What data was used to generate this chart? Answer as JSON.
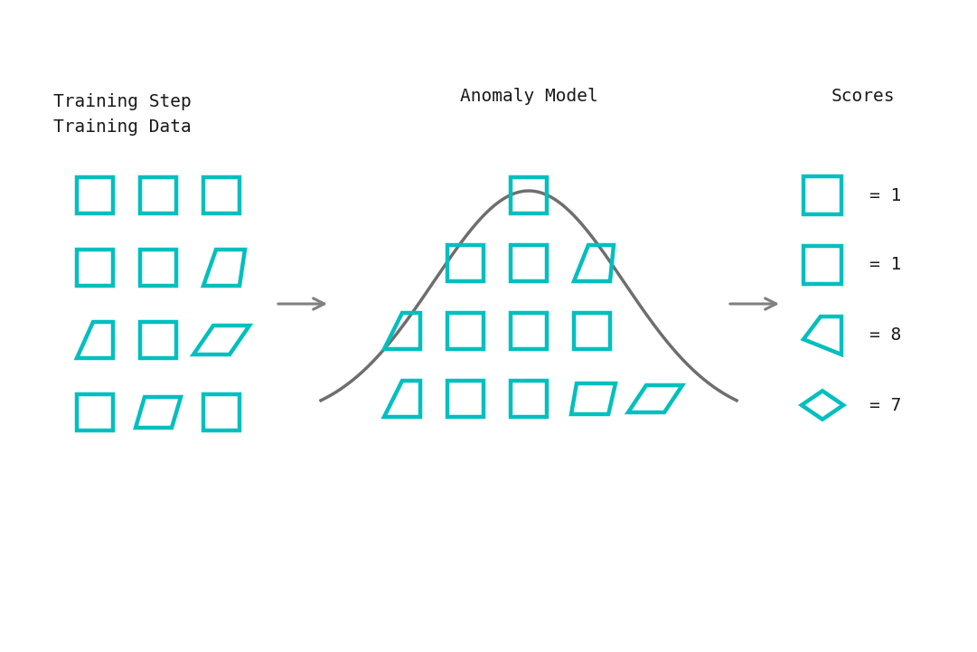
{
  "bg_color": "#ffffff",
  "teal_color": "#00BFBF",
  "gray_color": "#808080",
  "dark_color": "#1a1a1a",
  "title_left": "Training Step\nTraining Data",
  "title_mid": "Anomaly Model",
  "title_right": "Scores",
  "scores": [
    "= 1",
    "= 1",
    "= 8",
    "= 7"
  ],
  "lw": 3.2,
  "arrow_lw": 2.2,
  "figsize": [
    10.81,
    7.21
  ],
  "dpi": 100,
  "bell_mu": 0.0,
  "bell_sigma": 1.3,
  "bell_amplitude": 1.85,
  "bell_baseline": 0.0
}
